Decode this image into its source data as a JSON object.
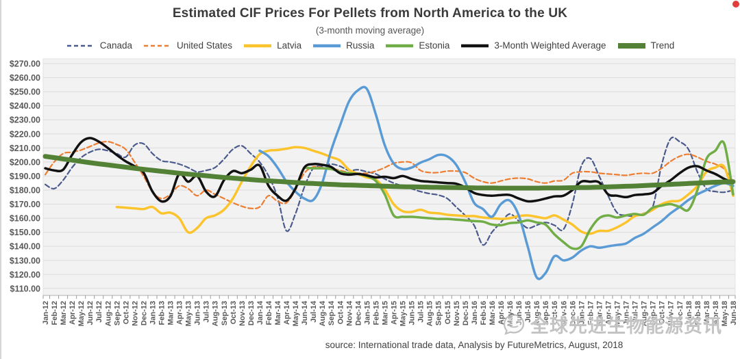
{
  "header": {
    "title": "Estimated CIF Prices For Pellets from North America to the UK",
    "subtitle": "(3-month moving average)"
  },
  "source_note": "source: International trade data, Analysis by FutureMetrics, August, 2018",
  "watermark": {
    "icon": "chat-bubble-face-icon",
    "text": "全球先进生物能源资讯"
  },
  "decorations": {
    "corner_mark_color": "#e23b3b",
    "left_edge_strip_color": "#d6d6d6"
  },
  "axes": {
    "y_tick_labels": [
      "$270.00",
      "$260.00",
      "$250.00",
      "$240.00",
      "$230.00",
      "$220.00",
      "$210.00",
      "$200.00",
      "$190.00",
      "$180.00",
      "$170.00",
      "$160.00",
      "$150.00",
      "$140.00",
      "$130.00",
      "$120.00",
      "$110.00"
    ],
    "grid_color": "#dcdcdc",
    "plot_bg": "#f2f2f2",
    "label_color": "#595959"
  },
  "chart_data": {
    "type": "line",
    "title": "Estimated CIF Prices For Pellets from North America to the UK",
    "subtitle": "(3-month moving average)",
    "ylim": [
      110,
      270
    ],
    "grid": true,
    "legend_position": "top",
    "x": [
      "Jan-12",
      "Feb-12",
      "Mar-12",
      "Apr-12",
      "May-12",
      "Jun-12",
      "Jul-12",
      "Aug-12",
      "Sep-12",
      "Oct-12",
      "Nov-12",
      "Dec-12",
      "Jan-13",
      "Feb-13",
      "Mar-13",
      "Apr-13",
      "May-13",
      "Jun-13",
      "Jul-13",
      "Aug-13",
      "Sep-13",
      "Oct-13",
      "Nov-13",
      "Dec-13",
      "Jan-14",
      "Feb-14",
      "Mar-14",
      "Apr-14",
      "May-14",
      "Jun-14",
      "Jul-14",
      "Aug-14",
      "Sep-14",
      "Oct-14",
      "Nov-14",
      "Dec-14",
      "Jan-15",
      "Feb-15",
      "Mar-15",
      "Apr-15",
      "May-15",
      "Jun-15",
      "Jul-15",
      "Aug-15",
      "Sep-15",
      "Oct-15",
      "Nov-15",
      "Dec-15",
      "Jan-16",
      "Feb-16",
      "Mar-16",
      "Apr-16",
      "May-16",
      "Jun-16",
      "Jul-16",
      "Aug-16",
      "Sep-16",
      "Oct-16",
      "Nov-16",
      "Dec-16",
      "Jan-17",
      "Feb-17",
      "Mar-17",
      "Apr-17",
      "May-17",
      "Jun-17",
      "Jul-17",
      "Aug-17",
      "Sep-17",
      "Oct-17",
      "Nov-17",
      "Dec-17",
      "Jan-18",
      "Feb-18",
      "Mar-18",
      "Apr-18",
      "May-18",
      "Jun-18"
    ],
    "series": [
      {
        "name": "Canada",
        "color": "#4A5A8C",
        "dash": true,
        "width": 2.2,
        "values": [
          184,
          181,
          187,
          196,
          203,
          207,
          209,
          208,
          206,
          203.5,
          212,
          213,
          206,
          201,
          200,
          198.5,
          196,
          193,
          194,
          196,
          202,
          209,
          211.5,
          206,
          200,
          190,
          175,
          151,
          163,
          182,
          195.5,
          197,
          198.5,
          197,
          194,
          194.5,
          193,
          191.5,
          188,
          185,
          183,
          181,
          179,
          177.5,
          176.5,
          174,
          168,
          162,
          155,
          141,
          150,
          157,
          163,
          158,
          153,
          155,
          157,
          155,
          152,
          170,
          197,
          202.5,
          190,
          176,
          164,
          162,
          161.5,
          163.5,
          168,
          198,
          216.5,
          214.5,
          209,
          193,
          181,
          179,
          178.5,
          180
        ]
      },
      {
        "name": "United States",
        "color": "#ED7D31",
        "dash": true,
        "width": 2.2,
        "values": [
          191,
          200,
          206,
          207,
          208.5,
          211,
          213.5,
          214.5,
          212.5,
          209,
          200,
          190,
          179,
          174,
          177,
          183,
          181,
          176,
          180,
          177,
          174,
          171,
          168.5,
          167,
          168,
          176,
          172,
          171,
          180,
          192,
          196.5,
          196,
          195.5,
          194,
          192.5,
          192,
          192,
          193.5,
          196,
          199,
          200,
          199.5,
          194,
          192.5,
          192.5,
          193.5,
          193.5,
          192.5,
          188.5,
          186,
          185,
          186.5,
          188,
          188.5,
          188,
          186,
          185,
          186.5,
          187,
          192,
          193,
          193,
          192,
          191.5,
          191,
          190.5,
          191.5,
          192,
          192,
          195.5,
          200.5,
          204,
          205.5,
          203.5,
          200.5,
          198.5,
          195,
          186
        ]
      },
      {
        "name": "Latvia",
        "color": "#FCC42C",
        "dash": false,
        "width": 3.5,
        "values": [
          null,
          null,
          null,
          null,
          null,
          null,
          null,
          null,
          168,
          167.5,
          167,
          166.5,
          168,
          163.5,
          164,
          160,
          150,
          153,
          160,
          162,
          166,
          174,
          186,
          197,
          205.5,
          208,
          208.5,
          209.5,
          210.5,
          210,
          208,
          206,
          203.5,
          201,
          194.5,
          191.5,
          189,
          187.5,
          180.5,
          170,
          165,
          164.5,
          166,
          164,
          163.5,
          162.5,
          162,
          161.5,
          161.5,
          160.5,
          160,
          159.5,
          160,
          161.5,
          162,
          161,
          160,
          162,
          159,
          155.5,
          150.5,
          149,
          151,
          151,
          153.5,
          157,
          161.5,
          163,
          166,
          170,
          172,
          172.5,
          177,
          183,
          193,
          196,
          196.5,
          176
        ]
      },
      {
        "name": "Russia",
        "color": "#5B9BD5",
        "dash": false,
        "width": 3.5,
        "values": [
          null,
          null,
          null,
          null,
          null,
          null,
          null,
          null,
          null,
          null,
          null,
          null,
          null,
          null,
          null,
          null,
          null,
          null,
          null,
          null,
          null,
          null,
          null,
          null,
          208,
          204,
          196,
          186,
          179,
          174,
          173,
          185,
          208,
          226,
          243,
          251,
          252,
          234,
          212,
          199,
          195,
          196,
          199.5,
          202,
          205,
          204,
          198,
          186,
          171,
          166.5,
          161,
          170,
          172.5,
          162,
          140,
          118,
          121,
          133,
          130,
          132,
          137,
          140,
          139,
          140,
          141,
          142,
          146,
          149,
          153.5,
          158,
          163.5,
          168,
          173,
          177,
          180,
          183,
          185,
          183
        ]
      },
      {
        "name": "Estonia",
        "color": "#70AD47",
        "dash": false,
        "width": 3.5,
        "values": [
          null,
          null,
          null,
          null,
          null,
          null,
          null,
          null,
          null,
          null,
          null,
          null,
          null,
          null,
          null,
          null,
          null,
          null,
          null,
          null,
          null,
          null,
          null,
          null,
          null,
          null,
          null,
          null,
          null,
          196,
          195.5,
          195.5,
          195,
          193,
          192,
          191.5,
          190,
          186.5,
          177,
          162,
          161,
          161,
          160.5,
          160,
          159.5,
          159.5,
          159,
          158.5,
          158,
          157.5,
          155.5,
          155,
          156.5,
          157,
          158.5,
          157,
          155.5,
          148.5,
          143,
          138.5,
          140,
          152,
          160,
          162,
          160.5,
          162,
          163,
          162.5,
          167.5,
          169,
          170,
          168,
          166,
          180,
          202,
          208,
          213,
          177
        ]
      },
      {
        "name": "3-Month Weighted Average",
        "color": "#111111",
        "dash": false,
        "width": 3.5,
        "values": [
          195.5,
          194,
          194.5,
          205,
          214,
          217,
          214.5,
          210,
          205,
          200.5,
          197,
          192.5,
          179,
          172,
          175.5,
          191.5,
          186,
          190,
          179,
          175.5,
          187,
          193.5,
          192,
          194.5,
          197.5,
          183,
          176,
          172.5,
          181,
          196,
          198.5,
          198,
          196.5,
          192,
          191,
          191.5,
          190.5,
          189,
          189.5,
          188.5,
          190,
          188,
          186.5,
          186,
          185.5,
          185,
          184.5,
          182,
          178,
          176.5,
          176,
          176.5,
          176.5,
          174,
          172,
          172.5,
          174,
          175.5,
          176,
          180,
          186,
          186,
          185.5,
          177,
          176,
          175,
          176.5,
          177,
          178,
          183,
          187,
          192,
          196,
          197,
          194,
          191.5,
          188,
          185
        ]
      },
      {
        "name": "Trend",
        "color": "#538135",
        "dash": false,
        "width": 7,
        "values": [
          204,
          203.1,
          202.2,
          201.3,
          200.4,
          199.5,
          198.7,
          197.9,
          197.1,
          196.3,
          195.5,
          194.8,
          194.1,
          193.4,
          192.7,
          192,
          191.4,
          190.8,
          190.2,
          189.6,
          189,
          188.5,
          188,
          187.5,
          187,
          186.6,
          186.2,
          185.8,
          185.4,
          185,
          184.7,
          184.4,
          184.1,
          183.8,
          183.6,
          183.4,
          183.2,
          183,
          182.8,
          182.6,
          182.4,
          182.3,
          182.2,
          182.1,
          182,
          181.9,
          181.8,
          181.7,
          181.6,
          181.5,
          181.5,
          181.4,
          181.4,
          181.4,
          181.4,
          181.4,
          181.5,
          181.5,
          181.6,
          181.7,
          181.8,
          181.9,
          182.1,
          182.3,
          182.5,
          182.7,
          182.9,
          183.2,
          183.5,
          183.8,
          184.1,
          184.4,
          184.7,
          185,
          185.3,
          185.6,
          185.8,
          186
        ]
      }
    ]
  }
}
